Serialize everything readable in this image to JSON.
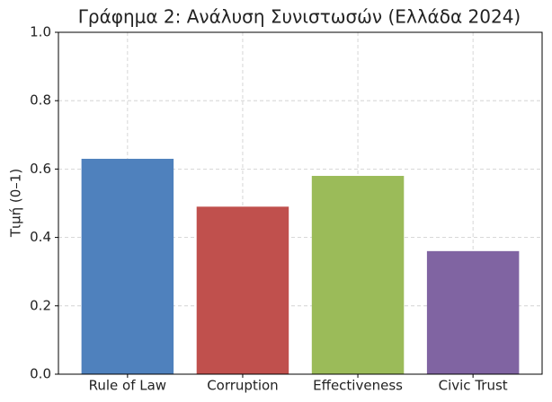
{
  "chart_data": {
    "type": "bar",
    "title": "Γράφημα 2: Ανάλυση Συνιστωσών (Ελλάδα 2024)",
    "y_label": "Τιμή (0–1)",
    "categories": [
      "Rule of Law",
      "Corruption",
      "Effectiveness",
      "Civic Trust"
    ],
    "values": [
      0.63,
      0.49,
      0.58,
      0.36
    ],
    "colors": [
      "#4f81bd",
      "#c0504d",
      "#9bbb59",
      "#8064a2"
    ],
    "ylim": [
      0,
      1
    ],
    "yticks": [
      {
        "value": 0,
        "label": "0.0"
      },
      0.2,
      0.4,
      0.6,
      0.8,
      {
        "value": 1,
        "label": "1.0"
      }
    ],
    "grid": true
  }
}
